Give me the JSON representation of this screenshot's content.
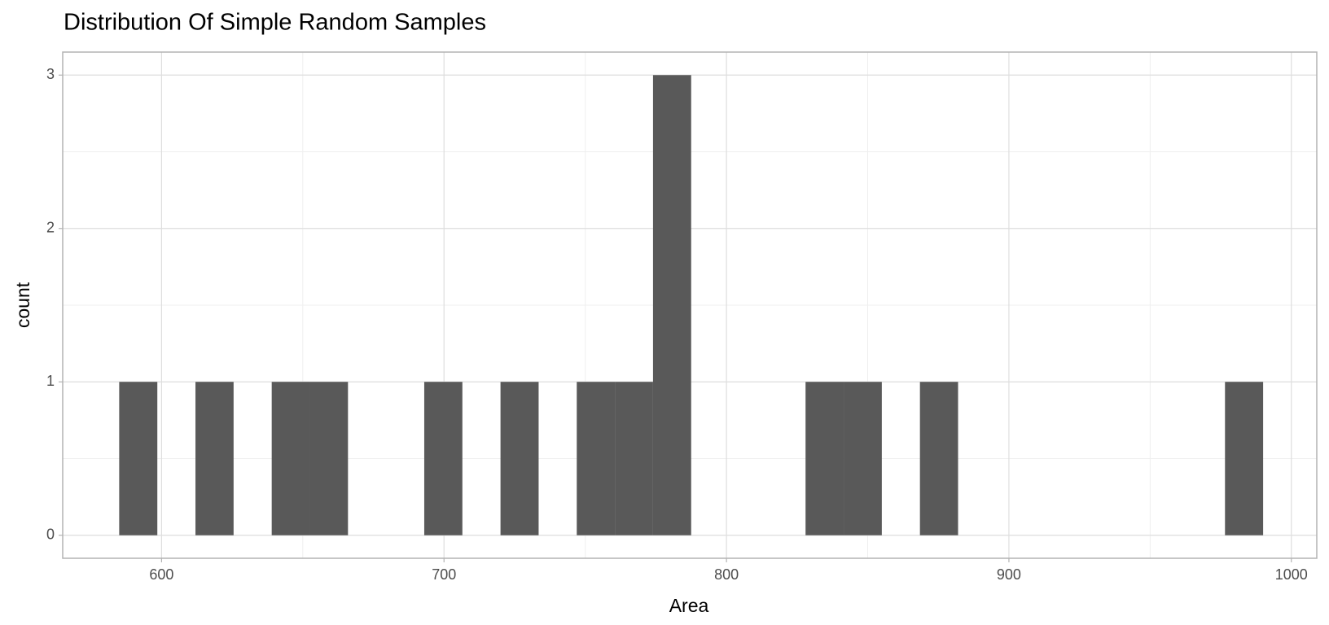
{
  "chart_data": {
    "type": "histogram",
    "title": "Distribution Of Simple Random Samples",
    "x_label": "Area",
    "y_label": "count",
    "bins": [
      585,
      598.5,
      612,
      625.5,
      639,
      652.5,
      666,
      679.5,
      693,
      706.5,
      720,
      733.5,
      747,
      760.5,
      774,
      787.5,
      801,
      814.5,
      828,
      841.5,
      855,
      868.5,
      882,
      895.5,
      909,
      922.5,
      936,
      949.5,
      963,
      976.5,
      990
    ],
    "values": [
      1,
      0,
      1,
      0,
      1,
      1,
      0,
      0,
      1,
      0,
      1,
      0,
      1,
      1,
      3,
      0,
      0,
      0,
      1,
      1,
      0,
      1,
      0,
      0,
      0,
      0,
      0,
      0,
      0,
      1
    ],
    "color": "#595959",
    "xlim": [
      565,
      1009
    ],
    "xticks": [
      600,
      700,
      800,
      900,
      1000
    ],
    "xminor": [
      650,
      750,
      850,
      950
    ],
    "ylim": [
      -0.15,
      3.15
    ],
    "yticks": [
      0,
      1,
      2,
      3
    ],
    "yminor": [
      0.5,
      1.5,
      2.5
    ],
    "grid": true
  }
}
